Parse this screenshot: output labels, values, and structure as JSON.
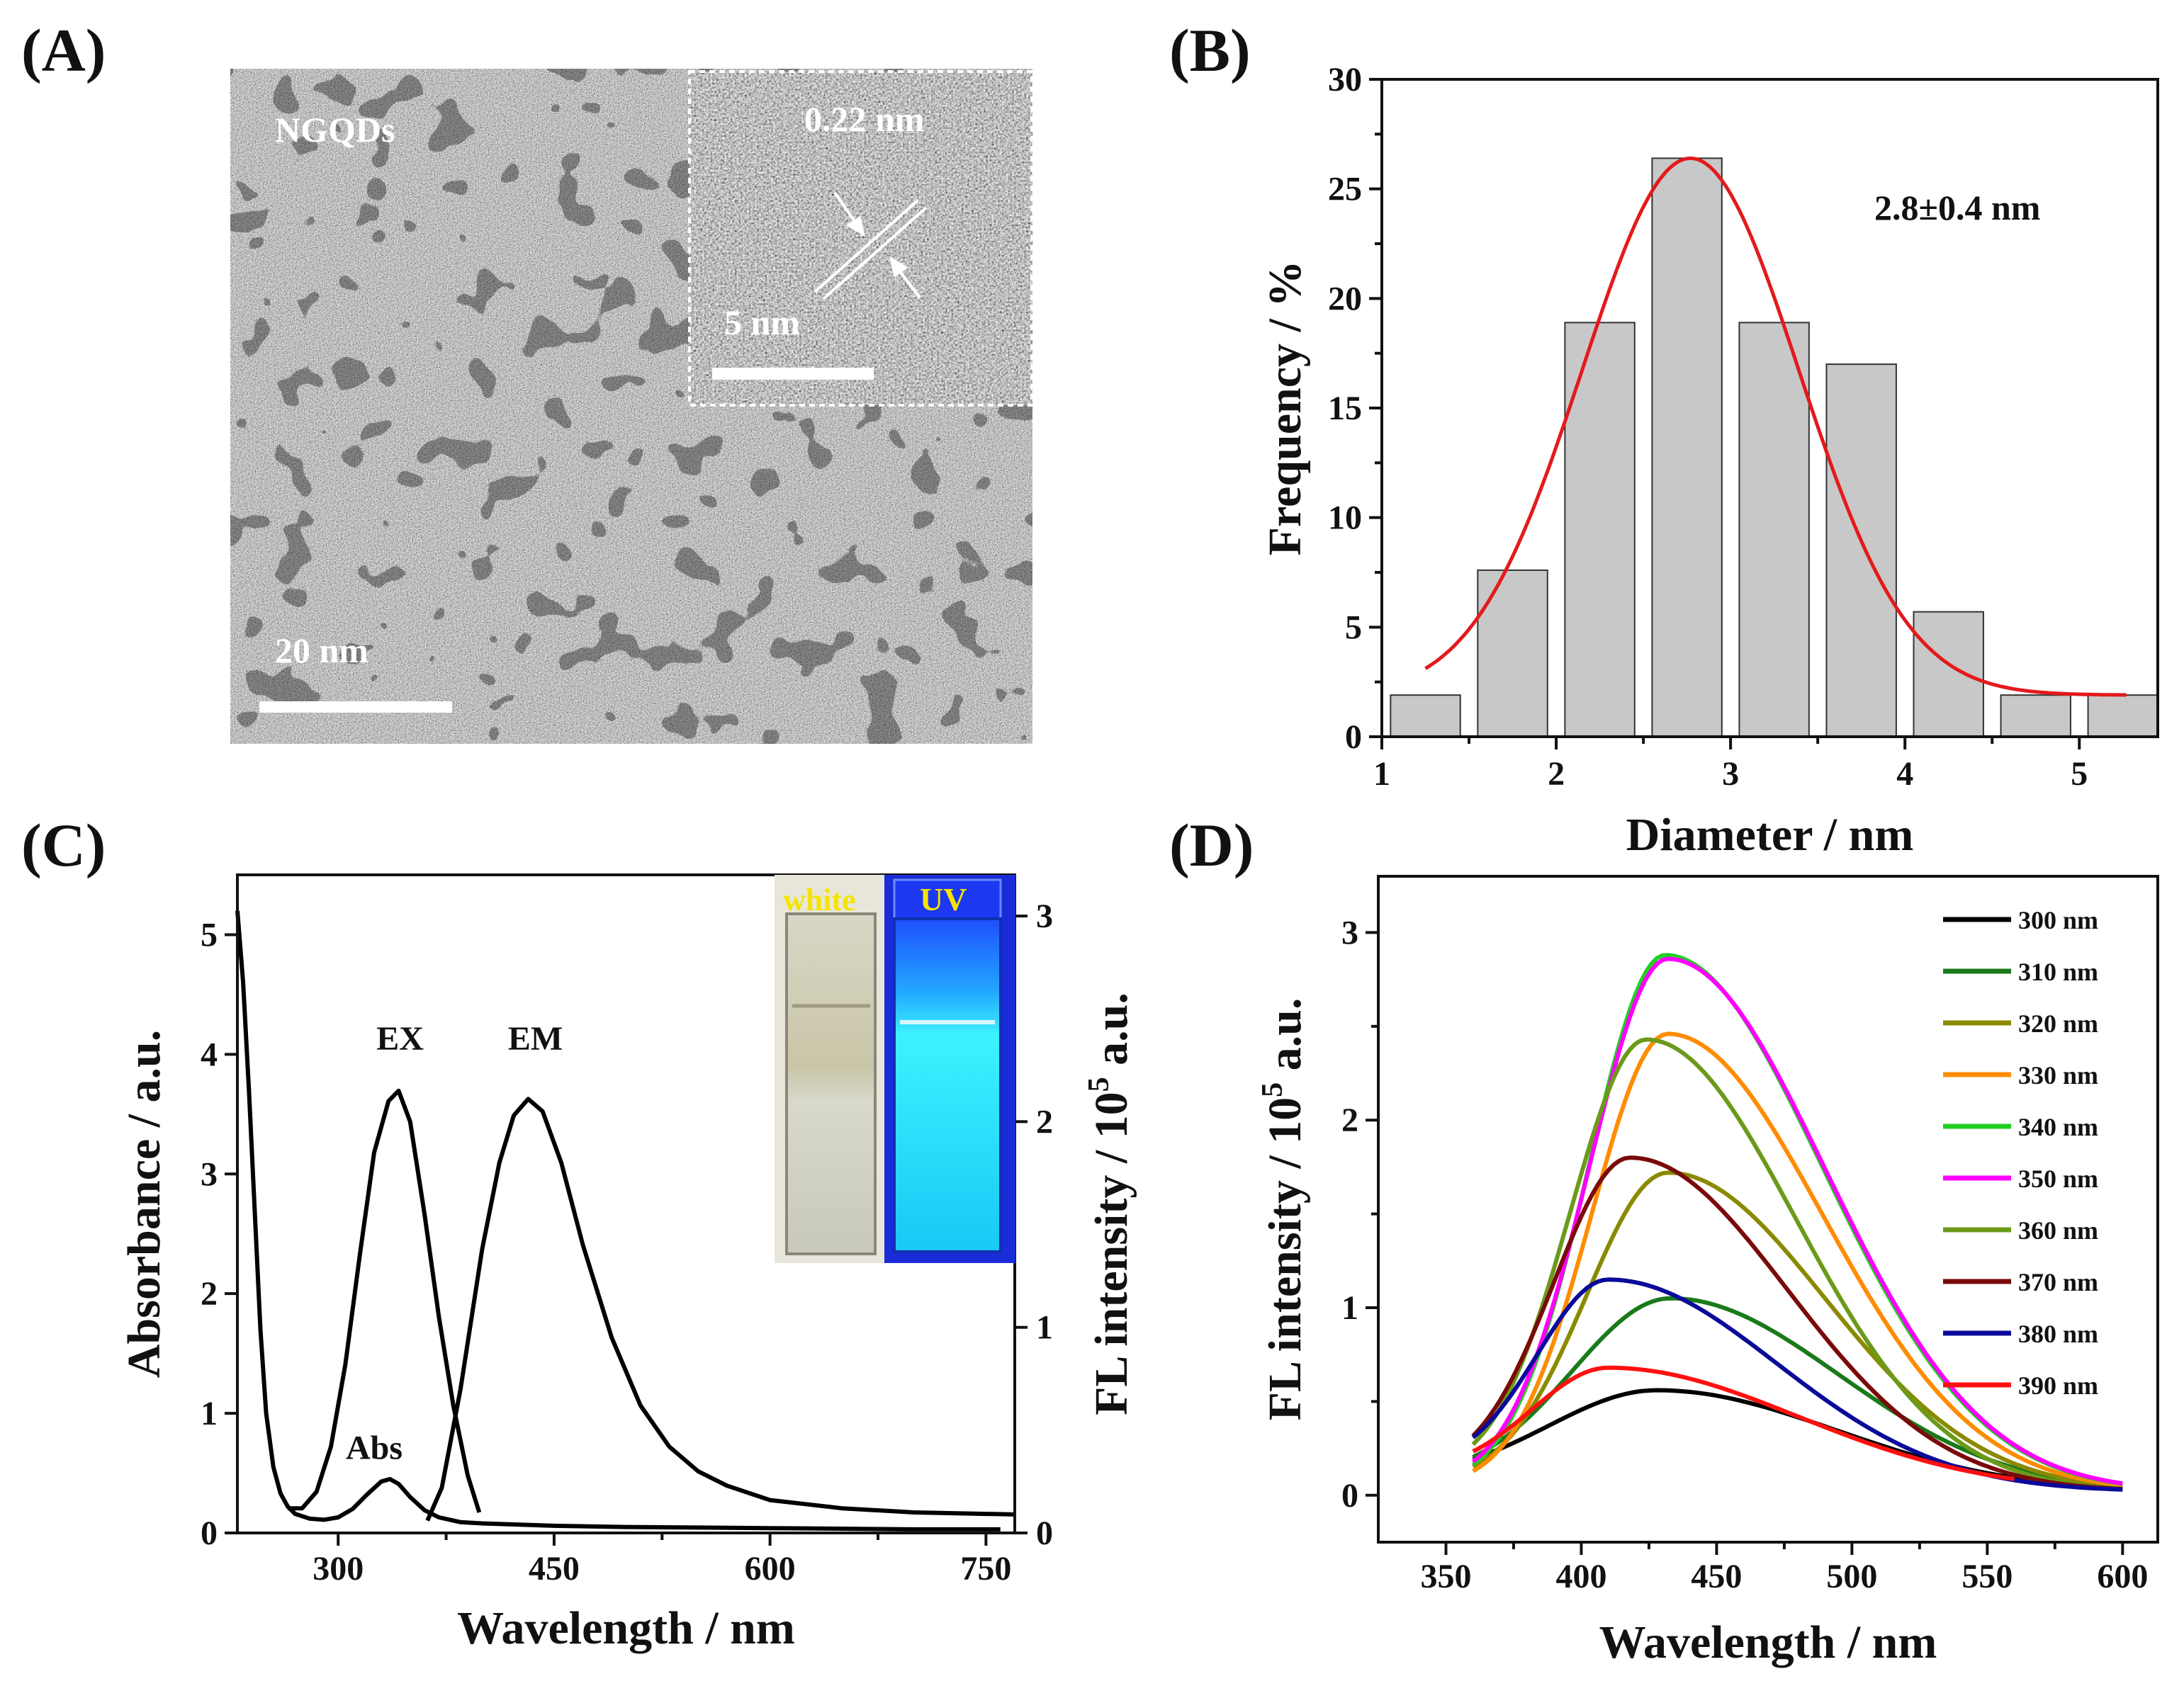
{
  "panels": {
    "a": {
      "label": "(A)",
      "sample": "NGQDs",
      "scale_bar": "20 nm",
      "inset_scale_bar": "5 nm",
      "lattice_spacing": "0.22 nm"
    },
    "b": {
      "label": "(B)"
    },
    "c": {
      "label": "(C)",
      "inset_white": "white",
      "inset_uv": "UV"
    },
    "d": {
      "label": "(D)"
    }
  },
  "colors": {
    "fit": "#e31a1c",
    "bar_fill": "#c8c8c8",
    "uv_glow": "#2ee8f2",
    "inset_label": "#f5e400"
  },
  "chart_data": [
    {
      "id": "b",
      "type": "bar",
      "title": "",
      "xlabel": "Diameter / nm",
      "ylabel": "Frequency / %",
      "xlim": [
        1,
        5.45
      ],
      "ylim": [
        0,
        30
      ],
      "xticks": [
        1,
        2,
        3,
        4,
        5
      ],
      "yticks": [
        0,
        5,
        10,
        15,
        20,
        25,
        30
      ],
      "bin_width": 0.4,
      "bars": [
        {
          "x": 1.25,
          "value": 1.9
        },
        {
          "x": 1.75,
          "value": 7.6
        },
        {
          "x": 2.25,
          "value": 18.9
        },
        {
          "x": 2.75,
          "value": 26.4
        },
        {
          "x": 3.25,
          "value": 18.9
        },
        {
          "x": 3.75,
          "value": 17.0
        },
        {
          "x": 4.25,
          "value": 5.7
        },
        {
          "x": 4.75,
          "value": 1.9
        },
        {
          "x": 5.25,
          "value": 1.9
        }
      ],
      "fit": {
        "type": "gaussian",
        "center": 2.77,
        "amplitude": 24.5,
        "sigma": 0.62,
        "offset": 1.9,
        "x_range": [
          1.25,
          5.27
        ]
      },
      "annotation": "2.8±0.4 nm"
    },
    {
      "id": "c",
      "type": "line",
      "title": "",
      "xlabel": "Wavelength / nm",
      "ylabel_left": "Absorbance / a.u.",
      "ylabel_right_prefix": "FL intensity / 10",
      "ylabel_right_exp": "5",
      "ylabel_right_suffix": " a.u.",
      "xlim": [
        230,
        770
      ],
      "ylim_left": [
        0,
        5.5
      ],
      "ylim_right": [
        0,
        3.2
      ],
      "xticks": [
        300,
        450,
        600,
        750
      ],
      "yticks_left": [
        0,
        1,
        2,
        3,
        4,
        5
      ],
      "yticks_right": [
        0,
        1,
        2,
        3
      ],
      "series": [
        {
          "name": "Abs",
          "axis": "left",
          "points": [
            [
              230,
              5.2
            ],
            [
              234,
              4.6
            ],
            [
              238,
              3.7
            ],
            [
              242,
              2.7
            ],
            [
              246,
              1.7
            ],
            [
              250,
              1.0
            ],
            [
              255,
              0.55
            ],
            [
              260,
              0.33
            ],
            [
              265,
              0.22
            ],
            [
              270,
              0.16
            ],
            [
              280,
              0.12
            ],
            [
              290,
              0.11
            ],
            [
              300,
              0.13
            ],
            [
              310,
              0.2
            ],
            [
              320,
              0.32
            ],
            [
              330,
              0.43
            ],
            [
              336,
              0.45
            ],
            [
              342,
              0.41
            ],
            [
              350,
              0.3
            ],
            [
              360,
              0.19
            ],
            [
              370,
              0.13
            ],
            [
              385,
              0.09
            ],
            [
              400,
              0.08
            ],
            [
              450,
              0.06
            ],
            [
              500,
              0.05
            ],
            [
              600,
              0.04
            ],
            [
              700,
              0.03
            ],
            [
              760,
              0.03
            ]
          ]
        },
        {
          "name": "EX",
          "axis": "right",
          "points": [
            [
              265,
              0.12
            ],
            [
              275,
              0.12
            ],
            [
              285,
              0.2
            ],
            [
              295,
              0.42
            ],
            [
              305,
              0.82
            ],
            [
              315,
              1.35
            ],
            [
              325,
              1.85
            ],
            [
              335,
              2.1
            ],
            [
              342,
              2.15
            ],
            [
              350,
              2.0
            ],
            [
              360,
              1.55
            ],
            [
              370,
              1.05
            ],
            [
              380,
              0.62
            ],
            [
              390,
              0.28
            ],
            [
              398,
              0.1
            ]
          ]
        },
        {
          "name": "EM",
          "axis": "right",
          "points": [
            [
              362,
              0.06
            ],
            [
              372,
              0.22
            ],
            [
              385,
              0.7
            ],
            [
              400,
              1.38
            ],
            [
              412,
              1.8
            ],
            [
              422,
              2.03
            ],
            [
              432,
              2.11
            ],
            [
              442,
              2.05
            ],
            [
              455,
              1.8
            ],
            [
              470,
              1.4
            ],
            [
              490,
              0.95
            ],
            [
              510,
              0.62
            ],
            [
              530,
              0.42
            ],
            [
              550,
              0.3
            ],
            [
              570,
              0.23
            ],
            [
              600,
              0.16
            ],
            [
              650,
              0.12
            ],
            [
              700,
              0.1
            ],
            [
              770,
              0.09
            ]
          ]
        }
      ],
      "annotations": [
        {
          "text": "EX",
          "x": 343,
          "y_right": 2.35
        },
        {
          "text": "EM",
          "x": 437,
          "y_right": 2.35
        },
        {
          "text": "Abs",
          "x": 325,
          "y_left": 0.62
        }
      ]
    },
    {
      "id": "d",
      "type": "line",
      "title": "",
      "xlabel": "Wavelength / nm",
      "ylabel_prefix": "FL intensity / 10",
      "ylabel_exp": "5",
      "ylabel_suffix": " a.u.",
      "xlim": [
        325,
        613
      ],
      "ylim": [
        -0.25,
        3.3
      ],
      "xticks": [
        350,
        400,
        450,
        500,
        550,
        600
      ],
      "yticks": [
        0,
        1,
        2,
        3
      ],
      "legend_position": "top-right",
      "series": [
        {
          "name": "300 nm",
          "color": "#000000",
          "peak": 428,
          "amp": 0.56,
          "start": 0.08,
          "sig_left": 40,
          "sig_right": 66,
          "end": 570
        },
        {
          "name": "310 nm",
          "color": "#1a7a1a",
          "peak": 433,
          "amp": 1.05,
          "start": 0.08,
          "sig_left": 36,
          "sig_right": 62,
          "end": 600
        },
        {
          "name": "320 nm",
          "color": "#8a8a00",
          "peak": 432,
          "amp": 1.72,
          "start": 0.06,
          "sig_left": 30,
          "sig_right": 58,
          "end": 600
        },
        {
          "name": "330 nm",
          "color": "#ff8c00",
          "peak": 432,
          "amp": 2.46,
          "start": 0.04,
          "sig_left": 28,
          "sig_right": 57,
          "end": 600
        },
        {
          "name": "340 nm",
          "color": "#22d022",
          "peak": 431,
          "amp": 2.88,
          "start": 0.05,
          "sig_left": 28,
          "sig_right": 58,
          "end": 600
        },
        {
          "name": "350 nm",
          "color": "#ff00ff",
          "peak": 432,
          "amp": 2.86,
          "start": 0.05,
          "sig_left": 29,
          "sig_right": 58,
          "end": 600
        },
        {
          "name": "360 nm",
          "color": "#6b9a1a",
          "peak": 424,
          "amp": 2.43,
          "start": 0.1,
          "sig_left": 28,
          "sig_right": 55,
          "end": 600
        },
        {
          "name": "370 nm",
          "color": "#7a0a0a",
          "peak": 418,
          "amp": 1.8,
          "start": 0.12,
          "sig_left": 28,
          "sig_right": 58,
          "end": 600
        },
        {
          "name": "380 nm",
          "color": "#0a0a9a",
          "peak": 410,
          "amp": 1.15,
          "start": 0.15,
          "sig_left": 26,
          "sig_right": 62,
          "end": 600
        },
        {
          "name": "390 nm",
          "color": "#ff1010",
          "peak": 410,
          "amp": 0.68,
          "start": 0.12,
          "sig_left": 28,
          "sig_right": 70,
          "end": 560
        }
      ]
    }
  ]
}
